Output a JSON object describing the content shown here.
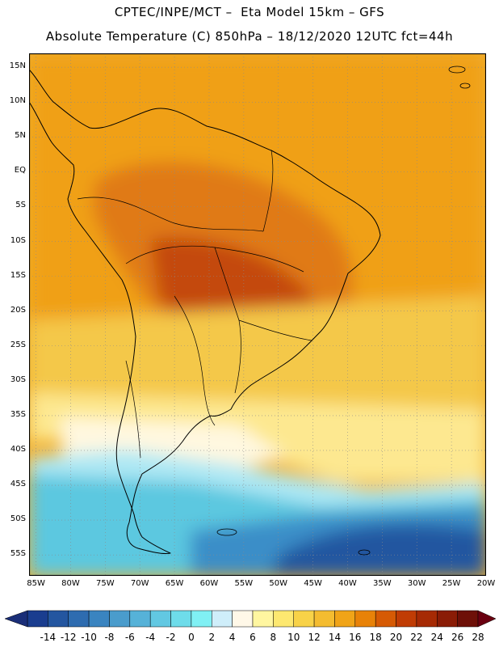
{
  "header": {
    "title_line1": "CPTEC/INPE/MCT –  Eta Model 15km – GFS",
    "title_line2": "Absolute Temperature (C) 850hPa – 18/12/2020 12UTC fct=44h"
  },
  "axes": {
    "lat_labels": [
      "15N",
      "10N",
      "5N",
      "EQ",
      "5S",
      "10S",
      "15S",
      "20S",
      "25S",
      "30S",
      "35S",
      "40S",
      "45S",
      "50S",
      "55S"
    ],
    "lat_values": [
      15,
      10,
      5,
      0,
      -5,
      -10,
      -15,
      -20,
      -25,
      -30,
      -35,
      -40,
      -45,
      -50,
      -55
    ],
    "lon_labels": [
      "85W",
      "80W",
      "75W",
      "70W",
      "65W",
      "60W",
      "55W",
      "50W",
      "45W",
      "40W",
      "35W",
      "30W",
      "25W",
      "20W"
    ],
    "lon_values": [
      -85,
      -80,
      -75,
      -70,
      -65,
      -60,
      -55,
      -50,
      -45,
      -40,
      -35,
      -30,
      -25,
      -20
    ],
    "lat_range": [
      -58,
      17
    ],
    "lon_range": [
      -86,
      -20
    ]
  },
  "colorbar": {
    "tick_labels": [
      "-14",
      "-12",
      "-10",
      "-8",
      "-6",
      "-4",
      "-2",
      "0",
      "2",
      "4",
      "6",
      "8",
      "10",
      "12",
      "14",
      "16",
      "18",
      "20",
      "22",
      "24",
      "26",
      "28"
    ],
    "colors": [
      "#1a3d8f",
      "#2456a0",
      "#2e6cb0",
      "#3a84c0",
      "#4a9ccc",
      "#56b2d8",
      "#62c8e2",
      "#6edcea",
      "#80f0f4",
      "#cfeefa",
      "#fff8e8",
      "#fff6a0",
      "#fde870",
      "#f8d248",
      "#f4bc30",
      "#f0a418",
      "#e88208",
      "#d65a04",
      "#c03c04",
      "#a62a04",
      "#8a1c06",
      "#6e1008"
    ],
    "left_arrow_color": "#1a2e78",
    "right_arrow_color": "#6a0010"
  },
  "field_colors": {
    "ocean_warm": "#f0b030",
    "tropics": "#f0a018",
    "hot": "#e07a14",
    "hottest": "#c44a10",
    "mild": "#f4c848",
    "cool": "#fde890",
    "pale": "#fff8e0",
    "cyan": "#aee8f4",
    "blue_light": "#5cc8e0",
    "blue_mid": "#3a8ec8",
    "blue_deep": "#2456a0"
  }
}
